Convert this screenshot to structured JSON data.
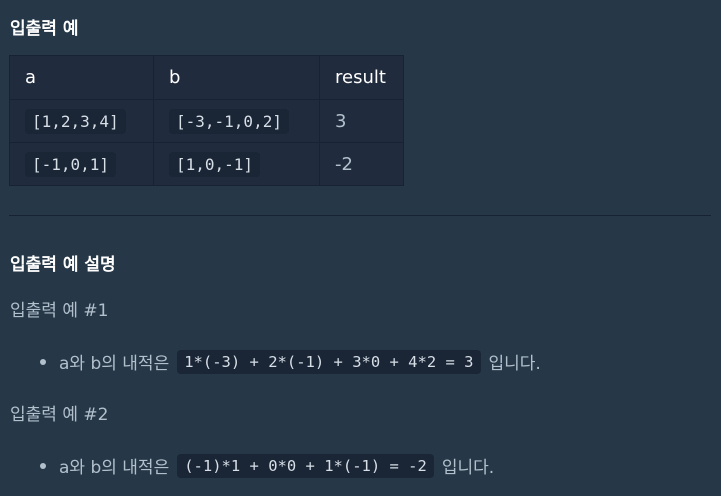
{
  "section1_title": "입출력 예",
  "table": {
    "headers": [
      "a",
      "b",
      "result"
    ],
    "rows": [
      {
        "a": "[1,2,3,4]",
        "b": "[-3,-1,0,2]",
        "result": "3"
      },
      {
        "a": "[-1,0,1]",
        "b": "[1,0,-1]",
        "result": "-2"
      }
    ]
  },
  "section2_title": "입출력 예 설명",
  "examples": [
    {
      "title": "입출력 예 #1",
      "prefix": "a와 b의 내적은",
      "code": "1*(-3) + 2*(-1) + 3*0 + 4*2 = 3",
      "suffix": "입니다."
    },
    {
      "title": "입출력 예 #2",
      "prefix": "a와 b의 내적은",
      "code": "(-1)*1 + 0*0 + 1*(-1) = -2",
      "suffix": "입니다."
    }
  ]
}
